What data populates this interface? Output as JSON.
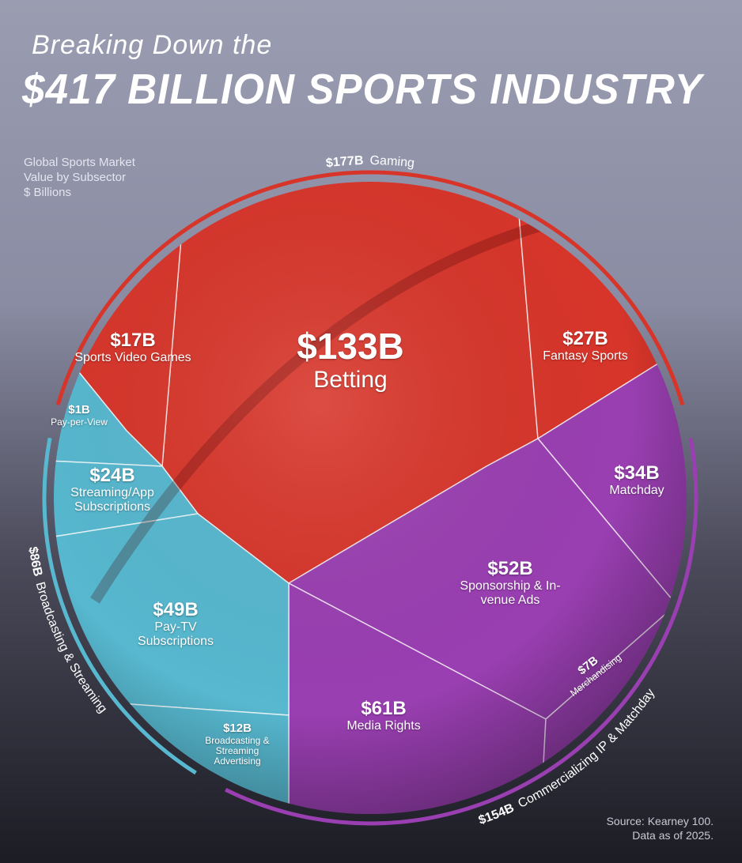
{
  "chart_data": {
    "type": "voronoi",
    "title": "Breaking Down the",
    "subtitle": "$417 BILLION SPORTS INDUSTRY",
    "note": [
      "Global Sports Market",
      "Value by Subsector",
      "$ Billions"
    ],
    "source": [
      "Source: Kearney 100.",
      "Data as of 2025."
    ],
    "groups": [
      {
        "name": "Gaming",
        "value": 177,
        "value_label": "$177B",
        "color": "#d8352a",
        "cells": [
          {
            "name": "Betting",
            "value": 133,
            "value_label": "$133B"
          },
          {
            "name": "Sports Video Games",
            "value": 17,
            "value_label": "$17B"
          },
          {
            "name": "Fantasy Sports",
            "value": 27,
            "value_label": "$27B"
          }
        ]
      },
      {
        "name": "Commercializing IP & Matchday",
        "value": 154,
        "value_label": "$154B",
        "color": "#9a3fb2",
        "cells": [
          {
            "name": "Matchday",
            "value": 34,
            "value_label": "$34B"
          },
          {
            "name": "Sponsorship & In-venue Ads",
            "value": 52,
            "value_label": "$52B"
          },
          {
            "name": "Media Rights",
            "value": 61,
            "value_label": "$61B"
          },
          {
            "name": "Merchandising",
            "value": 7,
            "value_label": "$7B"
          }
        ]
      },
      {
        "name": "Broadcasting & Streaming",
        "value": 86,
        "value_label": "$86B",
        "color": "#57b8cf",
        "cells": [
          {
            "name": "Pay-per-View",
            "value": 1,
            "value_label": "$1B"
          },
          {
            "name": "Streaming/App Subscriptions",
            "value": 24,
            "value_label": "$24B"
          },
          {
            "name": "Pay-TV Subscriptions",
            "value": 49,
            "value_label": "$49B"
          },
          {
            "name": "Broadcasting & Streaming Advertising",
            "value": 12,
            "value_label": "$12B"
          }
        ]
      }
    ]
  }
}
